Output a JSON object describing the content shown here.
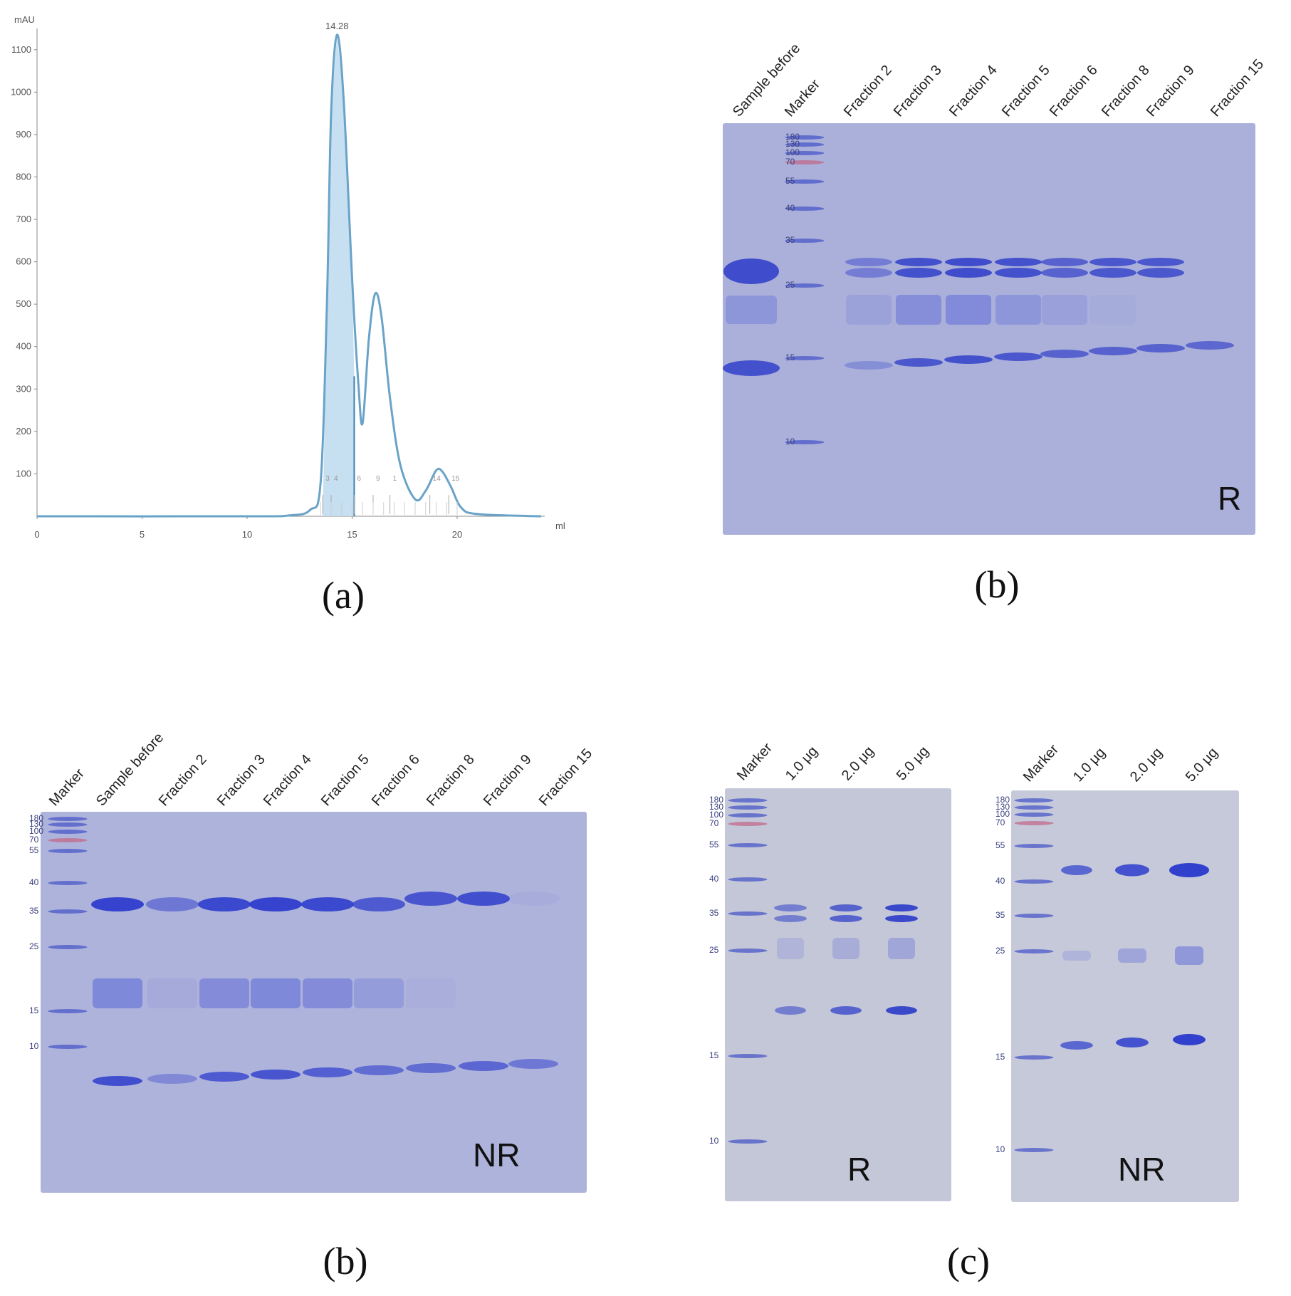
{
  "captions": {
    "a": "(a)",
    "b_top": "(b)",
    "b_bottom": "(b)",
    "c": "(c)"
  },
  "chart_data": {
    "type": "line",
    "ylabel": "mAU",
    "xlabel": "ml",
    "xlim": [
      0,
      24
    ],
    "ylim": [
      0,
      1150
    ],
    "xticks": [
      0,
      5,
      10,
      15,
      20
    ],
    "yticks": [
      100,
      200,
      300,
      400,
      500,
      600,
      700,
      800,
      900,
      1000,
      1100
    ],
    "peak_label": "14.28",
    "series": [
      {
        "x": [
          0,
          10,
          12,
          13,
          13.5,
          13.8,
          14.0,
          14.28,
          14.6,
          15.0,
          15.3,
          15.5,
          15.8,
          16.1,
          16.4,
          16.8,
          17.3,
          18.0,
          18.5,
          19.0,
          19.3,
          19.7,
          20.2,
          21,
          24
        ],
        "values": [
          0,
          0,
          2,
          15,
          80,
          500,
          950,
          1135,
          980,
          560,
          310,
          220,
          420,
          525,
          470,
          280,
          120,
          40,
          60,
          108,
          105,
          70,
          20,
          5,
          0
        ]
      }
    ],
    "shaded_range": [
      13.6,
      15.1
    ],
    "fraction_marks": [
      "3",
      "4",
      "6",
      "9",
      "1",
      "14",
      "15"
    ]
  },
  "gel_b_top": {
    "lanes": [
      "Sample before",
      "Marker",
      "Fraction 2",
      "Fraction 3",
      "Fraction 4",
      "Fraction 5",
      "Fraction 6",
      "Fraction 8",
      "Fraction 9",
      "Fraction 15"
    ],
    "marker_weights": [
      "180",
      "130",
      "100",
      "70",
      "55",
      "40",
      "35",
      "25",
      "15",
      "10"
    ],
    "condition": "R"
  },
  "gel_b_bottom": {
    "lanes": [
      "Marker",
      "Sample before",
      "Fraction 2",
      "Fraction 3",
      "Fraction 4",
      "Fraction 5",
      "Fraction 6",
      "Fraction 8",
      "Fraction 9",
      "Fraction 15"
    ],
    "marker_weights": [
      "180",
      "130",
      "100",
      "70",
      "55",
      "40",
      "35",
      "25",
      "15",
      "10"
    ],
    "condition": "NR"
  },
  "gel_c_left": {
    "lanes": [
      "Marker",
      "1.0 μg",
      "2.0 μg",
      "5.0 μg"
    ],
    "marker_weights": [
      "180",
      "130",
      "100",
      "70",
      "55",
      "40",
      "35",
      "25",
      "15",
      "10"
    ],
    "condition": "R"
  },
  "gel_c_right": {
    "lanes": [
      "Marker",
      "1.0 μg",
      "2.0 μg",
      "5.0 μg"
    ],
    "marker_weights": [
      "180",
      "130",
      "100",
      "70",
      "55",
      "40",
      "35",
      "25",
      "15",
      "10"
    ],
    "condition": "NR"
  }
}
